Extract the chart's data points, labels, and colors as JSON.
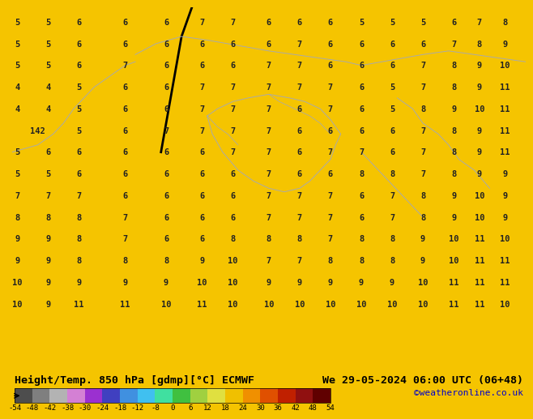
{
  "title_left": "Height/Temp. 850 hPa [gdmp][°C] ECMWF",
  "title_right": "We 29-05-2024 06:00 UTC (06+48)",
  "credit": "©weatheronline.co.uk",
  "colorbar_levels": [
    -54,
    -48,
    -42,
    -38,
    -30,
    -24,
    -18,
    -12,
    -8,
    0,
    6,
    12,
    18,
    24,
    30,
    36,
    42,
    48,
    54
  ],
  "colorbar_colors": [
    "#4d4d4d",
    "#7f7f7f",
    "#b3b3b3",
    "#d480d4",
    "#9b30d0",
    "#4040c0",
    "#4090e0",
    "#40c0f0",
    "#40e0a0",
    "#40c040",
    "#a0d040",
    "#e0e040",
    "#f0c000",
    "#f09000",
    "#e05000",
    "#c02000",
    "#901010",
    "#600000"
  ],
  "bg_color": "#f5c400",
  "map_bg": "#f5c400",
  "fig_width": 6.34,
  "fig_height": 4.9,
  "numbers_color": "#222222",
  "contour_color": "#555555",
  "black_line_color": "#000000",
  "bottom_bar_color": "#f0c800",
  "label_fontsize": 7.5,
  "title_fontsize": 9.5
}
